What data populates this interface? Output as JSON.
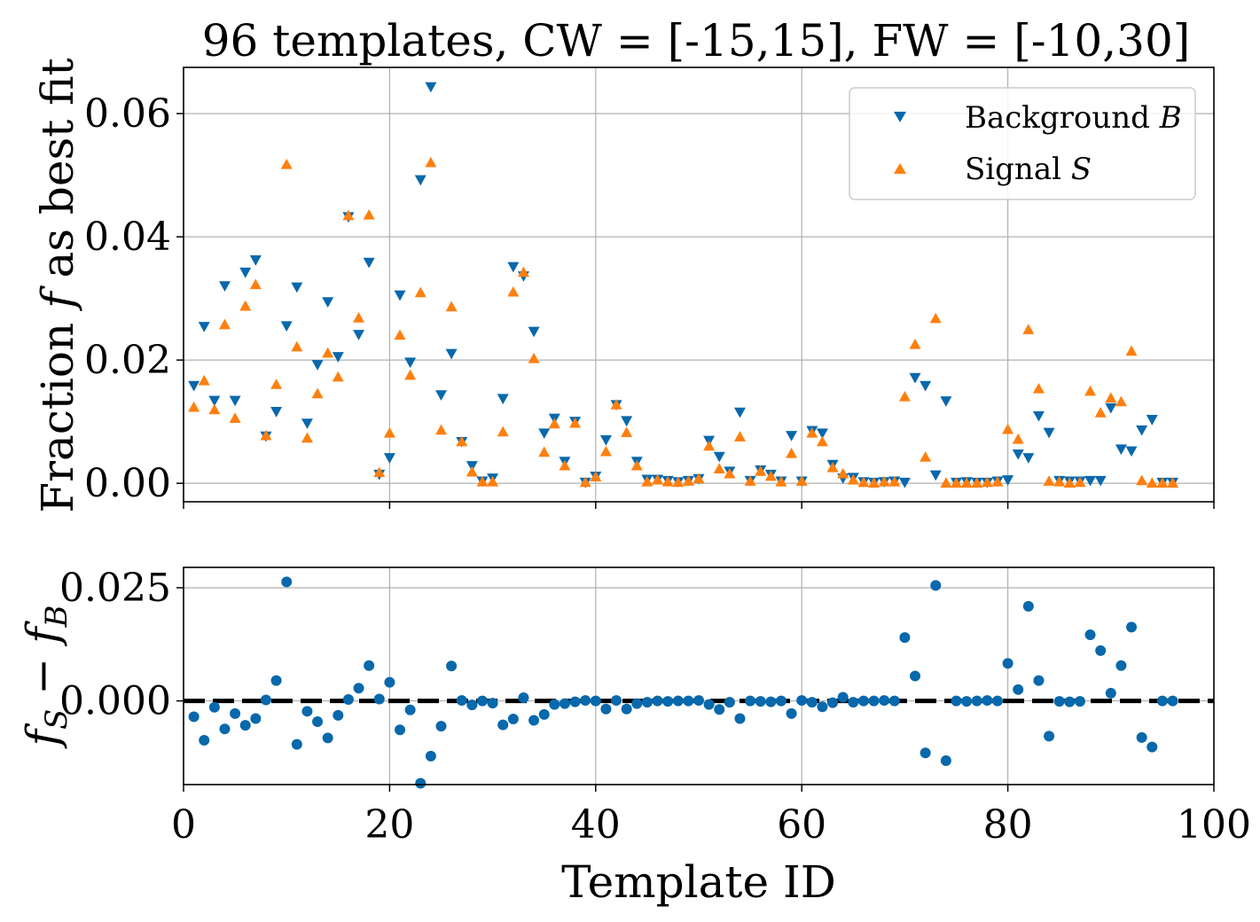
{
  "chart_data": [
    {
      "type": "scatter",
      "title": "96 templates, CW = [-15,15], FW = [-10,30]",
      "xlabel": "",
      "ylabel": "Fraction f as best fit",
      "xlim": [
        0,
        100
      ],
      "ylim": [
        -0.003,
        0.0675
      ],
      "grid": true,
      "legend_position": "top-right",
      "yticks": [
        "0.00",
        "0.02",
        "0.04",
        "0.06"
      ],
      "yticks_values": [
        0,
        0.02,
        0.04,
        0.06
      ],
      "xticks_values": [
        0,
        20,
        40,
        60,
        80,
        100
      ],
      "x": [
        1,
        2,
        3,
        4,
        5,
        6,
        7,
        8,
        9,
        10,
        11,
        12,
        13,
        14,
        15,
        16,
        17,
        18,
        19,
        20,
        21,
        22,
        23,
        24,
        25,
        26,
        27,
        28,
        29,
        30,
        31,
        32,
        33,
        34,
        35,
        36,
        37,
        38,
        39,
        40,
        41,
        42,
        43,
        44,
        45,
        46,
        47,
        48,
        49,
        50,
        51,
        52,
        53,
        54,
        55,
        56,
        57,
        58,
        59,
        60,
        61,
        62,
        63,
        64,
        65,
        66,
        67,
        68,
        69,
        70,
        71,
        72,
        73,
        74,
        75,
        76,
        77,
        78,
        79,
        80,
        81,
        82,
        83,
        84,
        85,
        86,
        87,
        88,
        89,
        90,
        91,
        92,
        93,
        94,
        95,
        96
      ],
      "series": [
        {
          "name": "Background B",
          "marker": "triangle-down",
          "color": "#0868ac",
          "values": [
            0.0158,
            0.0254,
            0.0134,
            0.032,
            0.0134,
            0.0342,
            0.0362,
            0.0076,
            0.0116,
            0.0255,
            0.0318,
            0.0097,
            0.0192,
            0.0294,
            0.0205,
            0.0432,
            0.0241,
            0.0358,
            0.0014,
            0.0041,
            0.0305,
            0.0196,
            0.0492,
            0.0643,
            0.0143,
            0.021,
            0.0067,
            0.0028,
            0.0003,
            0.0008,
            0.0137,
            0.0351,
            0.0336,
            0.0246,
            0.0081,
            0.0105,
            0.0035,
            0.01,
            0.0001,
            0.0011,
            0.007,
            0.0127,
            0.0101,
            0.0035,
            0.0006,
            0.0006,
            0.0004,
            0.0002,
            0.0004,
            0.0007,
            0.0069,
            0.0043,
            0.0019,
            0.0115,
            0.0004,
            0.0021,
            0.0014,
            0.0003,
            0.0077,
            0.0003,
            0.0085,
            0.0081,
            0.003,
            0.0008,
            0.0009,
            0.0002,
            0.0001,
            0.0002,
            0.0003,
            0.0001,
            0.0171,
            0.0158,
            0.0013,
            0.0133,
            0.0001,
            0.0002,
            0.0001,
            0.0001,
            0.0003,
            0.0005,
            0.0047,
            0.0041,
            0.0109,
            0.0082,
            0.0004,
            0.0003,
            0.0003,
            0.0004,
            0.0004,
            0.0122,
            0.0055,
            0.0052,
            0.0086,
            0.0103,
            0.0001,
            0.0001
          ]
        },
        {
          "name": "Signal S",
          "marker": "triangle-up",
          "color": "#ff7f0e",
          "values": [
            0.0124,
            0.0167,
            0.012,
            0.0258,
            0.0106,
            0.0288,
            0.0323,
            0.0078,
            0.0161,
            0.0518,
            0.0222,
            0.0074,
            0.0146,
            0.0212,
            0.0173,
            0.0435,
            0.0269,
            0.0436,
            0.0018,
            0.0082,
            0.0241,
            0.0176,
            0.031,
            0.0521,
            0.0087,
            0.0287,
            0.0068,
            0.0019,
            0.0003,
            0.0003,
            0.0084,
            0.0311,
            0.0343,
            0.0203,
            0.0051,
            0.0097,
            0.0029,
            0.0098,
            0.0002,
            0.0011,
            0.0052,
            0.0128,
            0.0083,
            0.0029,
            0.0003,
            0.0006,
            0.0003,
            0.0002,
            0.0004,
            0.0008,
            0.0061,
            0.0024,
            0.0016,
            0.0076,
            0.0004,
            0.002,
            0.0012,
            0.0003,
            0.0049,
            0.0004,
            0.0082,
            0.0068,
            0.0026,
            0.0016,
            0.0006,
            0.0002,
            0.0001,
            0.0003,
            0.0003,
            0.0141,
            0.0226,
            0.0043,
            0.0268,
            0.0001,
            0.0001,
            0.0001,
            0.0001,
            0.0002,
            0.0003,
            0.0088,
            0.0072,
            0.025,
            0.0154,
            0.0004,
            0.0003,
            0.0001,
            0.0002,
            0.015,
            0.0115,
            0.0139,
            0.0133,
            0.0215,
            0.0005,
            0.0001,
            0.0001,
            0.0001
          ]
        }
      ]
    },
    {
      "type": "scatter",
      "title": "",
      "xlabel": "Template ID",
      "ylabel": "f_S − f_B",
      "xlim": [
        0,
        100
      ],
      "ylim": [
        -0.0185,
        0.0295
      ],
      "grid": true,
      "yticks": [
        "0.000",
        "0.025"
      ],
      "yticks_values": [
        0,
        0.025
      ],
      "xticks": [
        "0",
        "20",
        "40",
        "60",
        "80",
        "100"
      ],
      "xticks_values": [
        0,
        20,
        40,
        60,
        80,
        100
      ],
      "reference_line": {
        "y": 0,
        "style": "dashed",
        "color": "#000000"
      },
      "x": [
        1,
        2,
        3,
        4,
        5,
        6,
        7,
        8,
        9,
        10,
        11,
        12,
        13,
        14,
        15,
        16,
        17,
        18,
        19,
        20,
        21,
        22,
        23,
        24,
        25,
        26,
        27,
        28,
        29,
        30,
        31,
        32,
        33,
        34,
        35,
        36,
        37,
        38,
        39,
        40,
        41,
        42,
        43,
        44,
        45,
        46,
        47,
        48,
        49,
        50,
        51,
        52,
        53,
        54,
        55,
        56,
        57,
        58,
        59,
        60,
        61,
        62,
        63,
        64,
        65,
        66,
        67,
        68,
        69,
        70,
        71,
        72,
        73,
        74,
        75,
        76,
        77,
        78,
        79,
        80,
        81,
        82,
        83,
        84,
        85,
        86,
        87,
        88,
        89,
        90,
        91,
        92,
        93,
        94,
        95,
        96
      ],
      "series": [
        {
          "color": "#0868ac",
          "marker": "circle",
          "values": [
            -0.0035,
            -0.0087,
            -0.0014,
            -0.0062,
            -0.0028,
            -0.0054,
            -0.0039,
            0.0002,
            0.0045,
            0.0263,
            -0.0096,
            -0.0023,
            -0.0046,
            -0.0082,
            -0.0032,
            0.0003,
            0.0028,
            0.0078,
            0.0004,
            0.0041,
            -0.0064,
            -0.002,
            -0.0182,
            -0.0122,
            -0.0056,
            0.0077,
            0.0001,
            -0.0009,
            0.0,
            -0.0005,
            -0.0053,
            -0.004,
            0.0007,
            -0.0043,
            -0.003,
            -0.0008,
            -0.0006,
            -0.0002,
            0.0001,
            0.0,
            -0.0018,
            0.0001,
            -0.0018,
            -0.0006,
            -0.0003,
            0.0,
            -0.0001,
            0.0,
            0.0,
            0.0001,
            -0.0008,
            -0.0019,
            -0.0003,
            -0.0039,
            0.0,
            -0.0001,
            -0.0002,
            0.0,
            -0.0028,
            0.0001,
            -0.0003,
            -0.0013,
            -0.0004,
            0.0008,
            -0.0003,
            0.0,
            0.0,
            0.0001,
            0.0,
            0.014,
            0.0055,
            -0.0115,
            0.0255,
            -0.0132,
            0.0,
            -0.0001,
            0.0,
            0.0001,
            0.0,
            0.0083,
            0.0025,
            0.0209,
            0.0045,
            -0.0078,
            -0.0001,
            -0.0002,
            -0.0001,
            0.0146,
            0.0111,
            0.0017,
            0.0078,
            0.0163,
            -0.0081,
            -0.0102,
            0.0,
            0.0
          ]
        }
      ]
    }
  ],
  "legend": {
    "entries": [
      {
        "prefix": "Background ",
        "var": "B"
      },
      {
        "prefix": "Signal ",
        "var": "S"
      }
    ]
  },
  "labels": {
    "top_ylabel_prefix": "Fraction ",
    "top_ylabel_var": "f",
    "top_ylabel_suffix": " as best fit",
    "bottom_ylabel_f1": "f",
    "bottom_ylabel_s1": "S",
    "bottom_ylabel_minus": " − ",
    "bottom_ylabel_f2": "f",
    "bottom_ylabel_s2": "B"
  }
}
